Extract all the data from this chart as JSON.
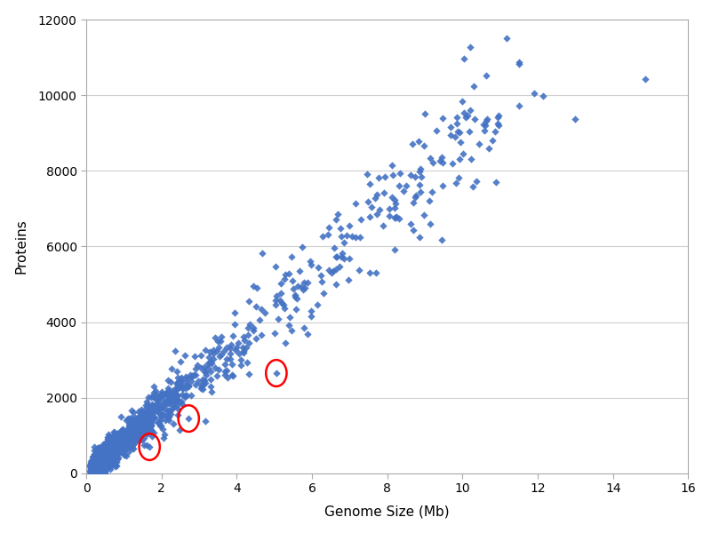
{
  "title": "",
  "xlabel": "Genome Size (Mb)",
  "ylabel": "Proteins",
  "xlim": [
    0,
    16
  ],
  "ylim": [
    0,
    12000
  ],
  "xticks": [
    0,
    2,
    4,
    6,
    8,
    10,
    12,
    14,
    16
  ],
  "yticks": [
    0,
    2000,
    4000,
    6000,
    8000,
    10000,
    12000
  ],
  "marker_color": "#4472C4",
  "marker_size": 18,
  "circle_color": "red",
  "circle_linewidth": 1.8,
  "circled_points": [
    [
      1.68,
      700
    ],
    [
      2.72,
      1450
    ],
    [
      5.05,
      2650
    ]
  ],
  "outlier_points": [
    [
      5.25,
      4450
    ],
    [
      11.9,
      10050
    ],
    [
      12.15,
      9980
    ],
    [
      13.0,
      9380
    ],
    [
      14.85,
      10440
    ]
  ],
  "seed": 99,
  "n_main": 900,
  "slope": 870,
  "noise_base": 150,
  "noise_growth": 0.08
}
